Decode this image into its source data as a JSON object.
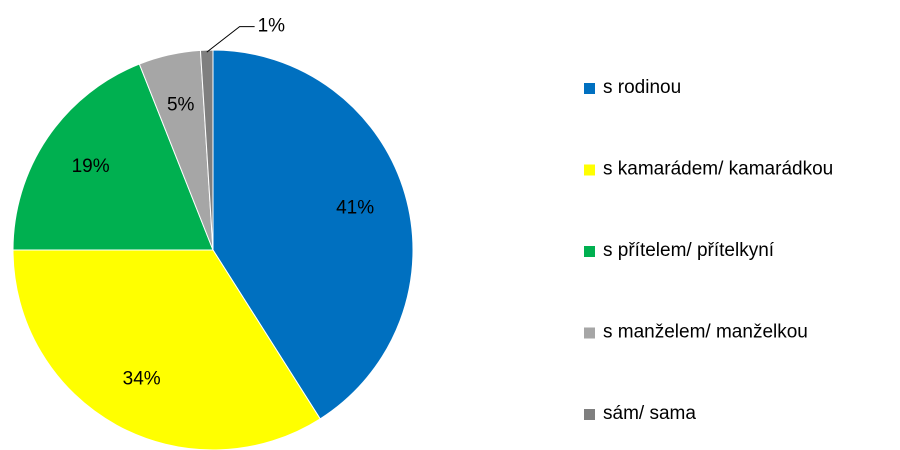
{
  "chart_data": {
    "type": "pie",
    "categories": [
      "s rodinou",
      "s kamarádem/ kamarádkou",
      "s přítelem/ přítelkyní",
      "s manželem/ manželkou",
      "sám/ sama"
    ],
    "values": [
      41,
      34,
      19,
      5,
      1
    ],
    "value_labels": [
      "41%",
      "34%",
      "19%",
      "5%",
      "1%"
    ],
    "colors": [
      "#0070c0",
      "#ffff00",
      "#00b050",
      "#a6a6a6",
      "#7f7f7f"
    ],
    "legend": "right"
  }
}
